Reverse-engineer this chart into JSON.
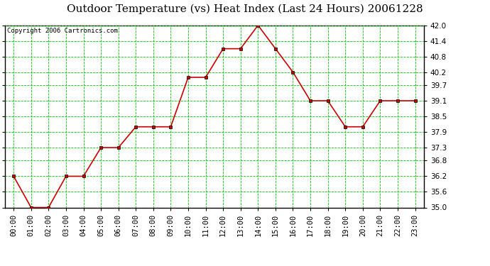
{
  "title": "Outdoor Temperature (vs) Heat Index (Last 24 Hours) 20061228",
  "copyright": "Copyright 2006 Cartronics.com",
  "hours": [
    "00:00",
    "01:00",
    "02:00",
    "03:00",
    "04:00",
    "05:00",
    "06:00",
    "07:00",
    "08:00",
    "09:00",
    "10:00",
    "11:00",
    "12:00",
    "13:00",
    "14:00",
    "15:00",
    "16:00",
    "17:00",
    "18:00",
    "19:00",
    "20:00",
    "21:00",
    "22:00",
    "23:00"
  ],
  "values": [
    36.2,
    35.0,
    35.0,
    36.2,
    36.2,
    37.3,
    37.3,
    38.1,
    38.1,
    38.1,
    40.0,
    40.0,
    41.1,
    41.1,
    42.0,
    41.1,
    40.2,
    39.1,
    39.1,
    38.1,
    38.1,
    39.1,
    39.1,
    39.1
  ],
  "ylim_min": 35.0,
  "ylim_max": 42.0,
  "yticks": [
    35.0,
    35.6,
    36.2,
    36.8,
    37.3,
    37.9,
    38.5,
    39.1,
    39.7,
    40.2,
    40.8,
    41.4,
    42.0
  ],
  "line_color": "#cc0000",
  "grid_color": "#00cc00",
  "bg_color": "#ffffff",
  "title_fontsize": 11,
  "copyright_fontsize": 6.5,
  "tick_fontsize": 7.5
}
